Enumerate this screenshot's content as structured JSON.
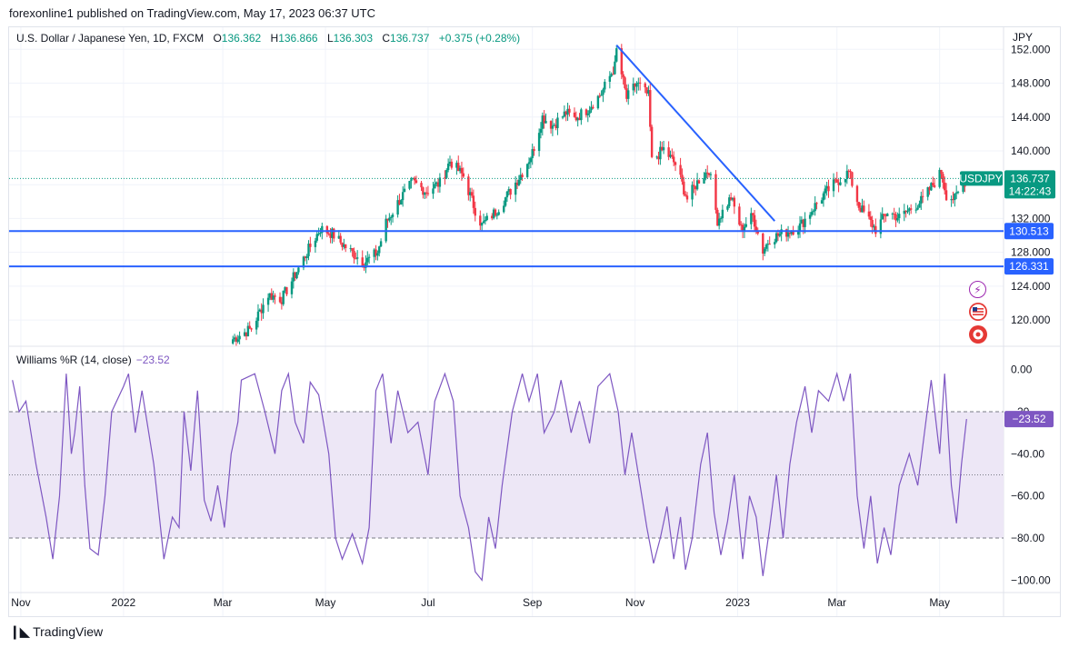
{
  "header": {
    "text": "forexonline1 published on TradingView.com, May 17, 2023 06:37 UTC"
  },
  "legend": {
    "symbol": "U.S. Dollar / Japanese Yen, 1D, FXCM",
    "o_label": "O",
    "o": "136.362",
    "h_label": "H",
    "h": "136.866",
    "l_label": "L",
    "l": "136.303",
    "c_label": "C",
    "c": "136.737",
    "change": "+0.375 (+0.28%)"
  },
  "unit": "JPY",
  "indicator": {
    "label": "Williams %R (14, close)",
    "value": "−23.52"
  },
  "price_tag": {
    "symbol": "USDJPY",
    "price": "136.737",
    "countdown": "14:22:43"
  },
  "level_tags": [
    "130.513",
    "126.331"
  ],
  "x_labels": [
    "Nov",
    "2022",
    "Mar",
    "May",
    "Jul",
    "Sep",
    "Nov",
    "2023",
    "Mar",
    "May"
  ],
  "footer": {
    "brand": "TradingView"
  },
  "icons": [
    "lightning-icon",
    "us-flag-icon",
    "record-icon"
  ],
  "colors": {
    "up": "#089981",
    "down": "#f23645",
    "trendline": "#2962ff",
    "wr": "#7e57c2",
    "wr_band": "#ede7f6",
    "price_tag": "#089981",
    "level_tag": "#2962ff"
  },
  "chart_data": [
    {
      "type": "candlestick",
      "title": "U.S. Dollar / Japanese Yen, 1D, FXCM",
      "ylabel": "JPY",
      "ylim": [
        117,
        153
      ],
      "y_ticks": [
        120,
        124,
        128,
        132,
        136,
        140,
        144,
        148,
        152
      ],
      "y_tick_labels": [
        "120.000",
        "124.000",
        "128.000",
        "132.000",
        "136.000",
        "140.000",
        "144.000",
        "148.000",
        "152.000"
      ],
      "x_range": [
        "2021-10-25",
        "2023-06-08"
      ],
      "ohlc_keypoints": [
        [
          "2022-03-05",
          117.5
        ],
        [
          "2022-03-18",
          119.0
        ],
        [
          "2022-03-28",
          123.0
        ],
        [
          "2022-04-05",
          122.5
        ],
        [
          "2022-04-12",
          125.0
        ],
        [
          "2022-04-20",
          128.0
        ],
        [
          "2022-04-28",
          130.8
        ],
        [
          "2022-05-05",
          130.2
        ],
        [
          "2022-05-12",
          128.8
        ],
        [
          "2022-05-24",
          126.8
        ],
        [
          "2022-06-01",
          128.0
        ],
        [
          "2022-06-06",
          131.5
        ],
        [
          "2022-06-15",
          134.5
        ],
        [
          "2022-06-22",
          136.3
        ],
        [
          "2022-06-30",
          135.2
        ],
        [
          "2022-07-08",
          136.2
        ],
        [
          "2022-07-14",
          138.8
        ],
        [
          "2022-07-22",
          137.0
        ],
        [
          "2022-07-29",
          133.0
        ],
        [
          "2022-08-02",
          131.2
        ],
        [
          "2022-08-10",
          132.8
        ],
        [
          "2022-08-18",
          135.0
        ],
        [
          "2022-08-26",
          137.5
        ],
        [
          "2022-09-01",
          139.8
        ],
        [
          "2022-09-07",
          144.0
        ],
        [
          "2022-09-13",
          143.0
        ],
        [
          "2022-09-21",
          144.5
        ],
        [
          "2022-09-26",
          143.8
        ],
        [
          "2022-10-03",
          144.8
        ],
        [
          "2022-10-12",
          146.8
        ],
        [
          "2022-10-20",
          150.0
        ],
        [
          "2022-10-21",
          151.9
        ],
        [
          "2022-10-27",
          146.2
        ],
        [
          "2022-11-02",
          148.0
        ],
        [
          "2022-11-09",
          146.5
        ],
        [
          "2022-11-11",
          138.8
        ],
        [
          "2022-11-18",
          140.2
        ],
        [
          "2022-11-25",
          138.4
        ],
        [
          "2022-12-02",
          134.3
        ],
        [
          "2022-12-09",
          136.6
        ],
        [
          "2022-12-15",
          137.8
        ],
        [
          "2022-12-20",
          131.8
        ],
        [
          "2022-12-28",
          134.5
        ],
        [
          "2023-01-03",
          130.8
        ],
        [
          "2023-01-10",
          132.3
        ],
        [
          "2023-01-16",
          128.2
        ],
        [
          "2023-01-20",
          129.6
        ],
        [
          "2023-01-30",
          130.4
        ],
        [
          "2023-02-07",
          131.1
        ],
        [
          "2023-02-14",
          133.0
        ],
        [
          "2023-02-21",
          134.8
        ],
        [
          "2023-02-28",
          136.2
        ],
        [
          "2023-03-08",
          137.5
        ],
        [
          "2023-03-14",
          133.5
        ],
        [
          "2023-03-24",
          130.7
        ],
        [
          "2023-03-31",
          132.8
        ],
        [
          "2023-04-07",
          132.1
        ],
        [
          "2023-04-14",
          133.2
        ],
        [
          "2023-04-21",
          134.2
        ],
        [
          "2023-04-28",
          136.3
        ],
        [
          "2023-05-02",
          137.5
        ],
        [
          "2023-05-05",
          134.8
        ],
        [
          "2023-05-10",
          134.3
        ],
        [
          "2023-05-17",
          136.737
        ]
      ],
      "last": {
        "open": 136.362,
        "high": 136.866,
        "low": 136.303,
        "close": 136.737
      },
      "horizontal_levels": [
        130.513,
        126.331
      ],
      "trendline": [
        [
          "2022-10-21",
          152.5
        ],
        [
          "2023-01-23",
          131.7
        ]
      ]
    },
    {
      "type": "line",
      "title": "Williams %R (14, close)",
      "ylim": [
        -105,
        5
      ],
      "y_ticks": [
        0,
        -20,
        -40,
        -60,
        -80,
        -100
      ],
      "y_tick_labels": [
        "0.00",
        "−20",
        "−40.00",
        "−60.00",
        "−80.00",
        "−100.00"
      ],
      "band": [
        -80,
        -20
      ],
      "guide_lines": [
        -20,
        -50,
        -80
      ],
      "last_value": -23.52,
      "keypoints": [
        [
          "2021-10-27",
          -5
        ],
        [
          "2021-10-31",
          -20
        ],
        [
          "2021-11-04",
          -15
        ],
        [
          "2021-11-10",
          -45
        ],
        [
          "2021-11-16",
          -70
        ],
        [
          "2021-11-20",
          -90
        ],
        [
          "2021-11-24",
          -60
        ],
        [
          "2021-11-28",
          -2
        ],
        [
          "2021-12-01",
          -40
        ],
        [
          "2021-12-03",
          -30
        ],
        [
          "2021-12-06",
          -8
        ],
        [
          "2021-12-09",
          -55
        ],
        [
          "2021-12-12",
          -85
        ],
        [
          "2021-12-17",
          -88
        ],
        [
          "2021-12-21",
          -60
        ],
        [
          "2021-12-25",
          -20
        ],
        [
          "2022-01-01",
          -8
        ],
        [
          "2022-01-04",
          -2
        ],
        [
          "2022-01-08",
          -30
        ],
        [
          "2022-01-12",
          -10
        ],
        [
          "2022-01-19",
          -45
        ],
        [
          "2022-01-25",
          -90
        ],
        [
          "2022-01-30",
          -70
        ],
        [
          "2022-02-03",
          -75
        ],
        [
          "2022-02-06",
          -20
        ],
        [
          "2022-02-10",
          -48
        ],
        [
          "2022-02-14",
          -10
        ],
        [
          "2022-02-18",
          -62
        ],
        [
          "2022-02-22",
          -72
        ],
        [
          "2022-02-26",
          -55
        ],
        [
          "2022-03-02",
          -75
        ],
        [
          "2022-03-06",
          -40
        ],
        [
          "2022-03-10",
          -25
        ],
        [
          "2022-03-12",
          -5
        ],
        [
          "2022-03-20",
          -2
        ],
        [
          "2022-03-26",
          -20
        ],
        [
          "2022-04-01",
          -40
        ],
        [
          "2022-04-05",
          -10
        ],
        [
          "2022-04-09",
          -2
        ],
        [
          "2022-04-13",
          -25
        ],
        [
          "2022-04-18",
          -35
        ],
        [
          "2022-04-22",
          -6
        ],
        [
          "2022-04-27",
          -12
        ],
        [
          "2022-05-03",
          -40
        ],
        [
          "2022-05-07",
          -80
        ],
        [
          "2022-05-11",
          -90
        ],
        [
          "2022-05-17",
          -78
        ],
        [
          "2022-05-23",
          -92
        ],
        [
          "2022-05-27",
          -75
        ],
        [
          "2022-05-31",
          -10
        ],
        [
          "2022-06-04",
          -2
        ],
        [
          "2022-06-09",
          -35
        ],
        [
          "2022-06-13",
          -10
        ],
        [
          "2022-06-19",
          -30
        ],
        [
          "2022-06-25",
          -25
        ],
        [
          "2022-07-01",
          -50
        ],
        [
          "2022-07-05",
          -15
        ],
        [
          "2022-07-11",
          -2
        ],
        [
          "2022-07-16",
          -15
        ],
        [
          "2022-07-20",
          -60
        ],
        [
          "2022-07-25",
          -75
        ],
        [
          "2022-07-29",
          -96
        ],
        [
          "2022-08-02",
          -100
        ],
        [
          "2022-08-06",
          -70
        ],
        [
          "2022-08-10",
          -85
        ],
        [
          "2022-08-14",
          -55
        ],
        [
          "2022-08-20",
          -20
        ],
        [
          "2022-08-26",
          -2
        ],
        [
          "2022-08-30",
          -15
        ],
        [
          "2022-09-04",
          -2
        ],
        [
          "2022-09-08",
          -30
        ],
        [
          "2022-09-14",
          -20
        ],
        [
          "2022-09-18",
          -5
        ],
        [
          "2022-09-24",
          -30
        ],
        [
          "2022-09-29",
          -15
        ],
        [
          "2022-10-05",
          -35
        ],
        [
          "2022-10-10",
          -8
        ],
        [
          "2022-10-17",
          -2
        ],
        [
          "2022-10-22",
          -20
        ],
        [
          "2022-10-26",
          -50
        ],
        [
          "2022-10-30",
          -30
        ],
        [
          "2022-11-04",
          -55
        ],
        [
          "2022-11-08",
          -75
        ],
        [
          "2022-11-12",
          -92
        ],
        [
          "2022-11-16",
          -80
        ],
        [
          "2022-11-20",
          -65
        ],
        [
          "2022-11-24",
          -90
        ],
        [
          "2022-11-28",
          -70
        ],
        [
          "2022-12-01",
          -95
        ],
        [
          "2022-12-05",
          -80
        ],
        [
          "2022-12-10",
          -45
        ],
        [
          "2022-12-14",
          -30
        ],
        [
          "2022-12-18",
          -68
        ],
        [
          "2022-12-22",
          -88
        ],
        [
          "2022-12-26",
          -72
        ],
        [
          "2022-12-30",
          -50
        ],
        [
          "2023-01-04",
          -90
        ],
        [
          "2023-01-08",
          -60
        ],
        [
          "2023-01-12",
          -70
        ],
        [
          "2023-01-16",
          -98
        ],
        [
          "2023-01-20",
          -75
        ],
        [
          "2023-01-24",
          -50
        ],
        [
          "2023-01-28",
          -80
        ],
        [
          "2023-02-01",
          -45
        ],
        [
          "2023-02-05",
          -25
        ],
        [
          "2023-02-10",
          -8
        ],
        [
          "2023-02-14",
          -30
        ],
        [
          "2023-02-18",
          -10
        ],
        [
          "2023-02-24",
          -15
        ],
        [
          "2023-03-01",
          -2
        ],
        [
          "2023-03-05",
          -15
        ],
        [
          "2023-03-09",
          -2
        ],
        [
          "2023-03-13",
          -60
        ],
        [
          "2023-03-17",
          -85
        ],
        [
          "2023-03-21",
          -60
        ],
        [
          "2023-03-25",
          -92
        ],
        [
          "2023-03-29",
          -75
        ],
        [
          "2023-04-02",
          -88
        ],
        [
          "2023-04-07",
          -55
        ],
        [
          "2023-04-13",
          -40
        ],
        [
          "2023-04-18",
          -55
        ],
        [
          "2023-04-22",
          -30
        ],
        [
          "2023-04-26",
          -5
        ],
        [
          "2023-05-01",
          -40
        ],
        [
          "2023-05-04",
          -2
        ],
        [
          "2023-05-08",
          -55
        ],
        [
          "2023-05-11",
          -73
        ],
        [
          "2023-05-14",
          -45
        ],
        [
          "2023-05-17",
          -23.52
        ]
      ]
    }
  ]
}
